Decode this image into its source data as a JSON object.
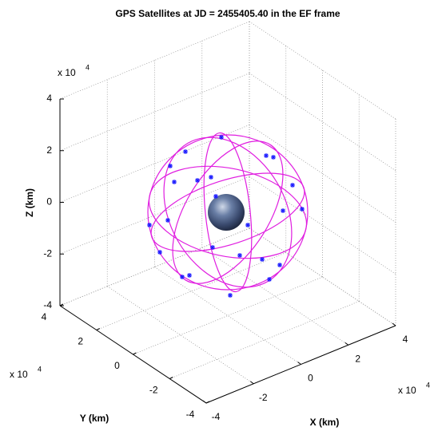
{
  "chart_data": {
    "type": "scatter3d",
    "title": "GPS Satellites at JD =    2455405.40 in the EF frame",
    "xlabel": "X (km)",
    "ylabel": "Y (km)",
    "zlabel": "Z (km)",
    "scale_base": "x 10",
    "scale_exponent": "4",
    "xlim": [
      -4,
      4
    ],
    "ylim": [
      -4,
      4
    ],
    "zlim": [
      -4,
      4
    ],
    "xticks": [
      -4,
      -2,
      0,
      2,
      4
    ],
    "yticks": [
      -4,
      -2,
      0,
      2,
      4
    ],
    "zticks": [
      -4,
      -2,
      0,
      2,
      4
    ],
    "grid": true,
    "orbit_color": "#e01ee0",
    "marker_color": "#1a1aff"
  }
}
